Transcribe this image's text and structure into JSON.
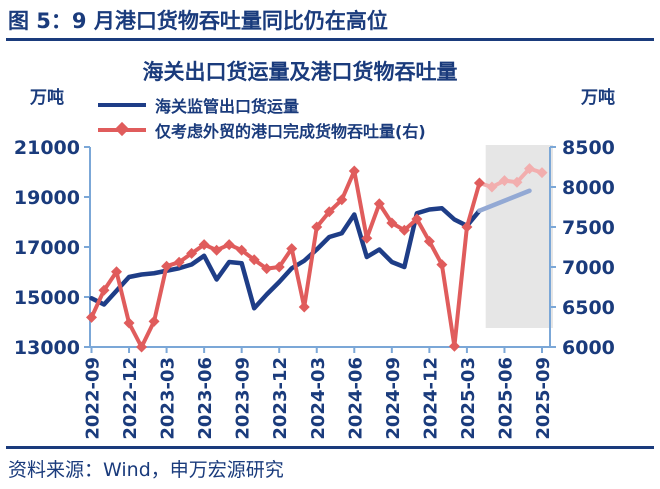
{
  "theme": {
    "navy": "#1a3b7c",
    "axis_line": "#7ba7d7",
    "band": "#e6e6e6",
    "faded_blue": "#93a9d4",
    "faded_red": "#f2aeae",
    "background": "#ffffff"
  },
  "figure": {
    "title": "图 5：9 月港口货物吞吐量同比仍在高位"
  },
  "chart": {
    "title": "海关出口货运量及港口货物吞吐量",
    "unit_left": "万吨",
    "unit_right": "万吨",
    "legend": [
      {
        "label": "海关监管出口货运量",
        "color": "#1e3d87",
        "marker": "none"
      },
      {
        "label": "仅考虑外贸的港口完成货物吞吐量(右)",
        "color": "#e05c5c",
        "marker": "diamond"
      }
    ]
  },
  "chart_data": {
    "type": "line",
    "title": "海关出口货运量及港口货物吞吐量",
    "x": [
      "2022-09",
      "2022-10",
      "2022-11",
      "2022-12",
      "2023-01",
      "2023-02",
      "2023-03",
      "2023-04",
      "2023-05",
      "2023-06",
      "2023-07",
      "2023-08",
      "2023-09",
      "2023-10",
      "2023-11",
      "2023-12",
      "2024-01",
      "2024-02",
      "2024-03",
      "2024-04",
      "2024-05",
      "2024-06",
      "2024-07",
      "2024-08",
      "2024-09",
      "2024-10",
      "2024-11",
      "2024-12",
      "2025-01",
      "2025-02",
      "2025-03",
      "2025-04",
      "2025-05",
      "2025-06",
      "2025-07",
      "2025-08",
      "2025-09"
    ],
    "x_tick_labels": [
      "2022-09",
      "2022-12",
      "2023-03",
      "2023-06",
      "2023-09",
      "2023-12",
      "2024-03",
      "2024-06",
      "2024-09",
      "2024-12",
      "2025-03",
      "2025-06",
      "2025-09"
    ],
    "series": [
      {
        "name": "海关监管出口货运量",
        "axis": "left",
        "color": "#1e3d87",
        "marker": "none",
        "values": [
          14950,
          14700,
          15250,
          15800,
          15900,
          15950,
          16050,
          16150,
          16300,
          16650,
          15700,
          16400,
          16350,
          14550,
          15100,
          15600,
          16150,
          16450,
          16900,
          17400,
          17550,
          18300,
          16600,
          16900,
          16400,
          16200,
          18350,
          18500,
          18550,
          18100,
          17850,
          18450,
          18650,
          18850,
          19050,
          19250,
          null
        ]
      },
      {
        "name": "仅考虑外贸的港口完成货物吞吐量(右)",
        "axis": "right",
        "color": "#e05c5c",
        "marker": "diamond",
        "values": [
          6370,
          6710,
          6940,
          6300,
          6000,
          6320,
          7010,
          7060,
          7170,
          7280,
          7210,
          7280,
          7210,
          7090,
          6980,
          7000,
          7230,
          6500,
          7500,
          7690,
          7840,
          8200,
          7360,
          7790,
          7550,
          7460,
          7600,
          7320,
          7030,
          6010,
          7500,
          8050,
          8000,
          8080,
          8060,
          8230,
          8180
        ]
      }
    ],
    "left_axis": {
      "label": "万吨",
      "min": 13000,
      "max": 21000,
      "ticks": [
        13000,
        15000,
        17000,
        19000,
        21000
      ]
    },
    "right_axis": {
      "label": "万吨",
      "min": 6000,
      "max": 8500,
      "ticks": [
        6000,
        6500,
        7000,
        7500,
        8000,
        8500
      ]
    },
    "grid": false,
    "legend_position": "top-left",
    "faded_from": "2025-05",
    "highlight_region": {
      "from": "2025-05",
      "to": "2025-09",
      "color": "#e6e6e6"
    }
  },
  "source": {
    "label": "资料来源：Wind，申万宏源研究"
  }
}
